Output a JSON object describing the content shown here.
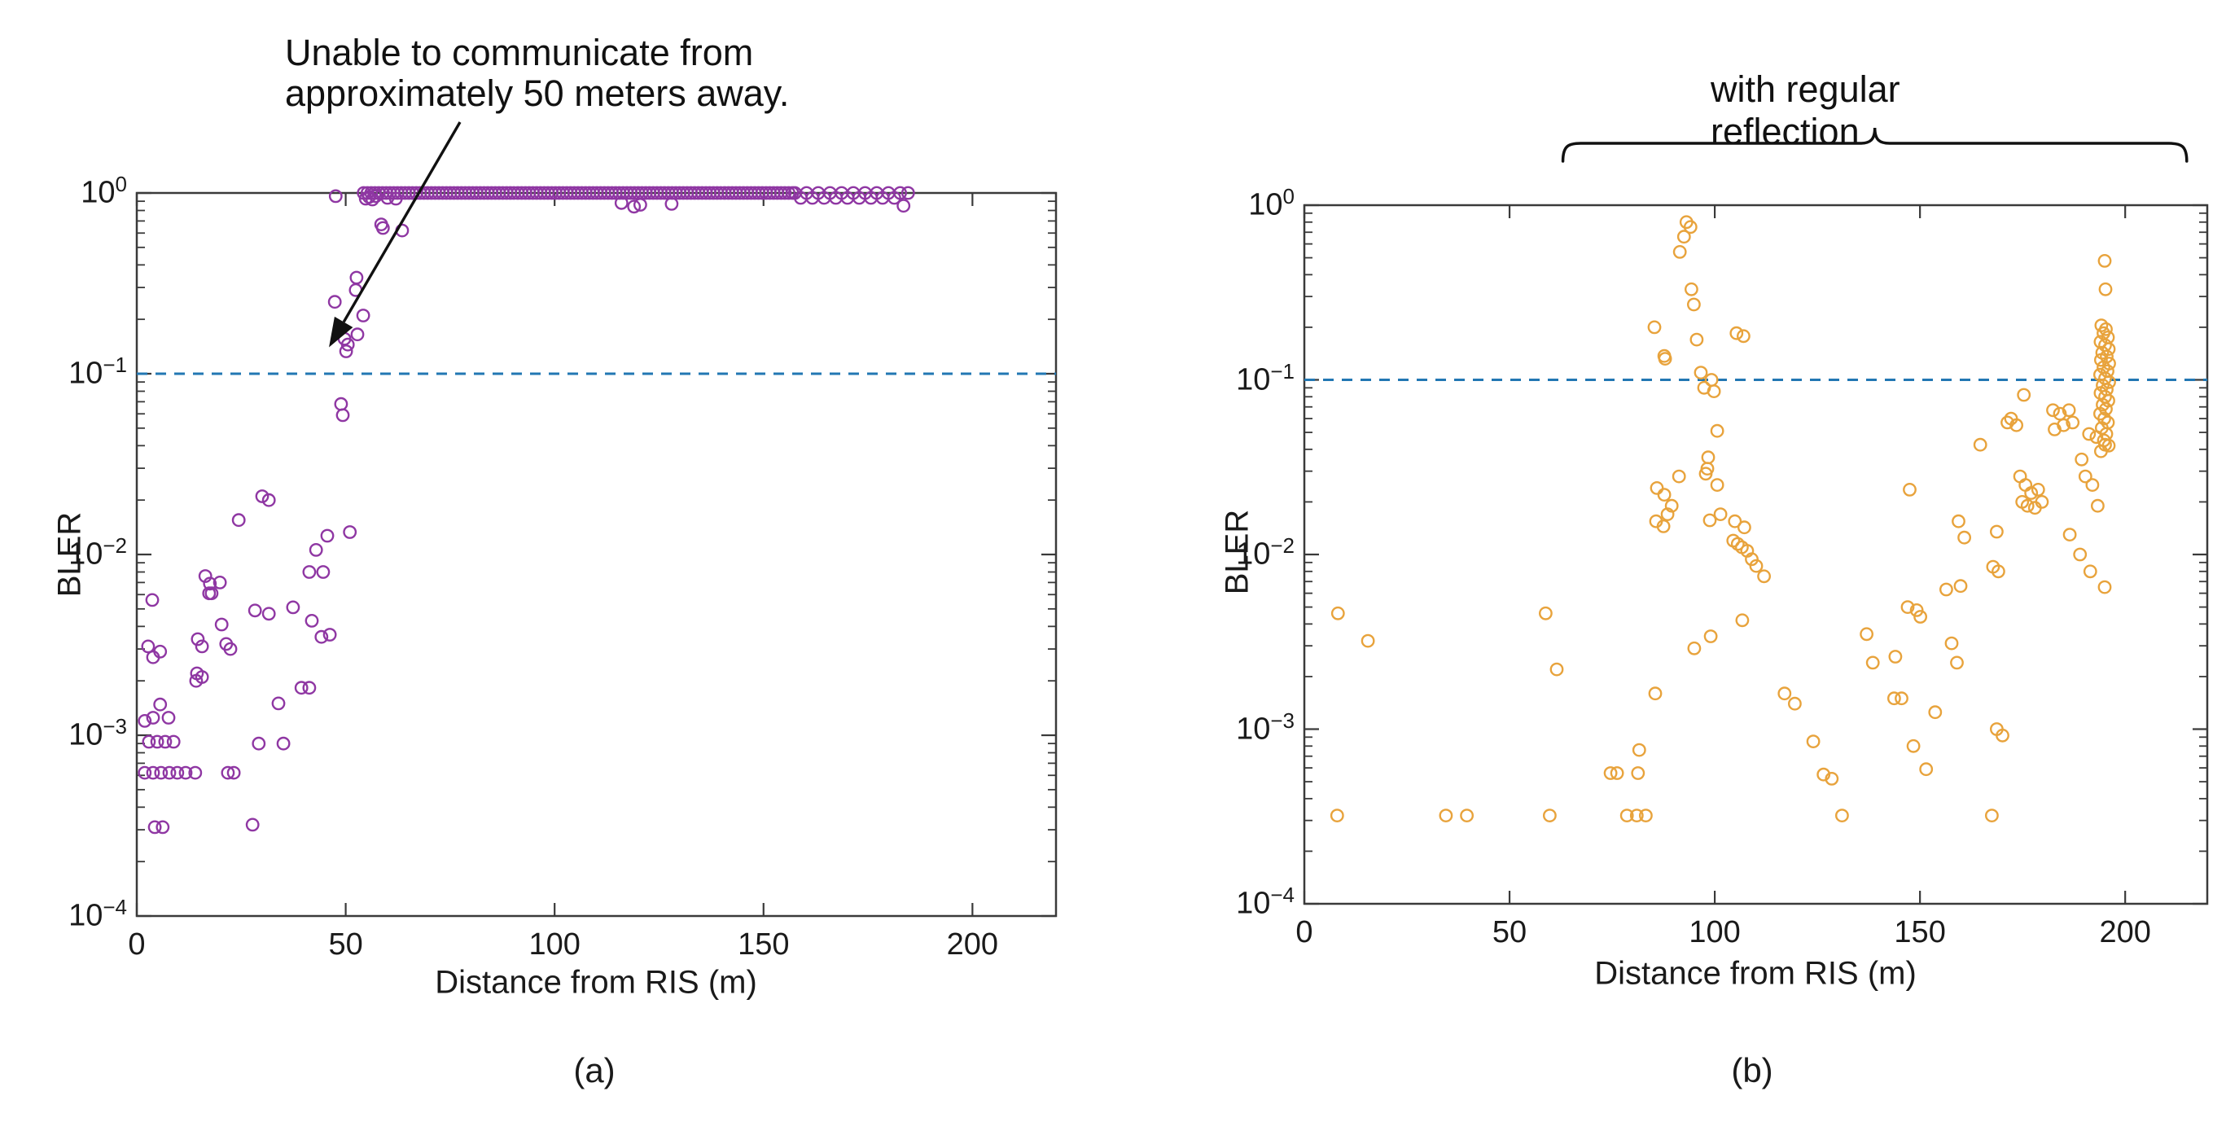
{
  "figure": {
    "background": "#ffffff",
    "accent_colors": {
      "panel_a_marker": "#8F37A3",
      "panel_b_marker": "#E8A33C",
      "threshold_line": "#2277B3",
      "axis": "#3a3a3a",
      "text": "#1a1a1a"
    },
    "panels": [
      {
        "id": "a",
        "caption": "(a)",
        "xlabel": "Distance from RIS (m)",
        "ylabel": "BLER",
        "annotation": {
          "line1": "Unable to communicate from",
          "line2": "approximately 50 meters away."
        }
      },
      {
        "id": "b",
        "caption": "(b)",
        "xlabel": "Distance from RIS (m)",
        "ylabel": "BLER",
        "brace_label": "with regular reflection"
      }
    ]
  },
  "chart_data": [
    {
      "type": "scatter",
      "panel": "a",
      "title": "",
      "xlabel": "Distance from RIS (m)",
      "ylabel": "BLER",
      "xlim": [
        0,
        220
      ],
      "xticks": [
        0,
        50,
        100,
        150,
        200
      ],
      "yscale": "log",
      "ylim": [
        0.0001,
        1
      ],
      "ytick_exponents": [
        0,
        -1,
        -2,
        -3,
        -4
      ],
      "grid": false,
      "legend": "none",
      "marker": {
        "shape": "open-circle",
        "color": "#8F37A3",
        "radius_px": 7.2
      },
      "threshold_line": {
        "value": 0.1,
        "style": "dashed",
        "color": "#2277B3"
      },
      "annotation": {
        "text_line1": "Unable to communicate from",
        "text_line2": "approximately 50 meters away.",
        "arrow_target": [
          46,
          0.14
        ]
      },
      "saturated_band": {
        "value": 1.0,
        "x_start": 54.3,
        "x_end": 157.0,
        "step": 0.9
      },
      "points": [
        [
          47.6,
          0.96
        ],
        [
          58.5,
          0.67
        ],
        [
          58.9,
          0.64
        ],
        [
          63.5,
          0.62
        ],
        [
          52.6,
          0.34
        ],
        [
          52.4,
          0.29
        ],
        [
          47.4,
          0.25
        ],
        [
          54.2,
          0.21
        ],
        [
          52.8,
          0.165
        ],
        [
          49.7,
          0.156
        ],
        [
          50.5,
          0.145
        ],
        [
          50.1,
          0.133
        ],
        [
          48.9,
          0.068
        ],
        [
          49.3,
          0.059
        ],
        [
          54.8,
          0.93
        ],
        [
          55.6,
          0.95
        ],
        [
          56.4,
          0.92
        ],
        [
          57.2,
          0.96
        ],
        [
          60,
          0.94
        ],
        [
          62,
          0.93
        ],
        [
          116,
          0.88
        ],
        [
          119,
          0.84
        ],
        [
          120.5,
          0.86
        ],
        [
          128,
          0.87
        ],
        [
          183.5,
          0.85
        ],
        [
          157.5,
          1
        ],
        [
          160.3,
          1
        ],
        [
          163.1,
          1
        ],
        [
          165.9,
          1
        ],
        [
          168.7,
          1
        ],
        [
          171.5,
          1
        ],
        [
          174.3,
          1
        ],
        [
          177.1,
          1
        ],
        [
          179.9,
          1
        ],
        [
          182.7,
          1
        ],
        [
          184.6,
          1
        ],
        [
          158.9,
          0.94
        ],
        [
          161.7,
          0.94
        ],
        [
          164.5,
          0.94
        ],
        [
          167.3,
          0.94
        ],
        [
          170.1,
          0.94
        ],
        [
          172.9,
          0.94
        ],
        [
          175.7,
          0.94
        ],
        [
          178.5,
          0.94
        ],
        [
          181.3,
          0.94
        ],
        [
          30,
          0.021
        ],
        [
          31.6,
          0.02
        ],
        [
          24.4,
          0.0155
        ],
        [
          51,
          0.0133
        ],
        [
          45.6,
          0.0127
        ],
        [
          42.9,
          0.0106
        ],
        [
          41.3,
          0.008
        ],
        [
          44.6,
          0.008
        ],
        [
          16.4,
          0.0076
        ],
        [
          19.9,
          0.007
        ],
        [
          17.5,
          0.0069
        ],
        [
          17.3,
          0.0061
        ],
        [
          17.9,
          0.0061
        ],
        [
          3.7,
          0.0056
        ],
        [
          37.4,
          0.0051
        ],
        [
          28.3,
          0.0049
        ],
        [
          31.6,
          0.0047
        ],
        [
          41.9,
          0.0043
        ],
        [
          20.3,
          0.0041
        ],
        [
          46.2,
          0.0036
        ],
        [
          44.2,
          0.0035
        ],
        [
          14.6,
          0.0034
        ],
        [
          21.4,
          0.0032
        ],
        [
          2.7,
          0.0031
        ],
        [
          15.6,
          0.0031
        ],
        [
          22.4,
          0.003
        ],
        [
          5.6,
          0.0029
        ],
        [
          3.9,
          0.0027
        ],
        [
          14.4,
          0.0022
        ],
        [
          15.6,
          0.0021
        ],
        [
          14.2,
          0.002
        ],
        [
          39.4,
          0.00183
        ],
        [
          41.3,
          0.00183
        ],
        [
          33.9,
          0.0015
        ],
        [
          5.6,
          0.00148
        ],
        [
          3.9,
          0.00125
        ],
        [
          7.6,
          0.00125
        ],
        [
          1.9,
          0.0012
        ],
        [
          2.9,
          0.00092
        ],
        [
          4.9,
          0.00092
        ],
        [
          6.8,
          0.00092
        ],
        [
          8.8,
          0.00092
        ],
        [
          29.2,
          0.0009
        ],
        [
          35.1,
          0.0009
        ],
        [
          1.9,
          0.00062
        ],
        [
          3.9,
          0.00062
        ],
        [
          5.8,
          0.00062
        ],
        [
          7.8,
          0.00062
        ],
        [
          9.7,
          0.00062
        ],
        [
          11.7,
          0.00062
        ],
        [
          14,
          0.00062
        ],
        [
          21.8,
          0.00062
        ],
        [
          23.2,
          0.00062
        ],
        [
          4.3,
          0.00031
        ],
        [
          6.2,
          0.00031
        ],
        [
          27.7,
          0.00032
        ]
      ]
    },
    {
      "type": "scatter",
      "panel": "b",
      "title": "",
      "xlabel": "Distance from RIS (m)",
      "ylabel": "BLER",
      "xlim": [
        0,
        220
      ],
      "xticks": [
        0,
        50,
        100,
        150,
        200
      ],
      "yscale": "log",
      "ylim": [
        0.0001,
        1
      ],
      "ytick_exponents": [
        0,
        -1,
        -2,
        -3,
        -4
      ],
      "grid": false,
      "legend": "none",
      "marker": {
        "shape": "open-circle",
        "color": "#E8A33C",
        "radius_px": 7.2
      },
      "threshold_line": {
        "value": 0.1,
        "style": "dashed",
        "color": "#2277B3"
      },
      "brace": {
        "label": "with regular reflection",
        "x_start": 63,
        "x_end": 215
      },
      "points": [
        [
          8.2,
          0.0046
        ],
        [
          15.5,
          0.0032
        ],
        [
          58.8,
          0.0046
        ],
        [
          61.5,
          0.0022
        ],
        [
          85.5,
          0.0016
        ],
        [
          81.6,
          0.00076
        ],
        [
          74.6,
          0.00056
        ],
        [
          76.2,
          0.00056
        ],
        [
          81.3,
          0.00056
        ],
        [
          8,
          0.00032
        ],
        [
          34.5,
          0.00032
        ],
        [
          39.6,
          0.00032
        ],
        [
          59.8,
          0.00032
        ],
        [
          78.6,
          0.00032
        ],
        [
          81,
          0.00032
        ],
        [
          83.2,
          0.00032
        ],
        [
          131,
          0.00032
        ],
        [
          167.5,
          0.00032
        ],
        [
          93.1,
          0.8
        ],
        [
          94.1,
          0.75
        ],
        [
          92.5,
          0.66
        ],
        [
          91.5,
          0.54
        ],
        [
          94.3,
          0.33
        ],
        [
          94.9,
          0.27
        ],
        [
          85.3,
          0.2
        ],
        [
          95.6,
          0.17
        ],
        [
          87.7,
          0.137
        ],
        [
          87.9,
          0.132
        ],
        [
          105.3,
          0.185
        ],
        [
          107,
          0.178
        ],
        [
          96.6,
          0.11
        ],
        [
          99.2,
          0.1
        ],
        [
          97.4,
          0.09
        ],
        [
          99.8,
          0.086
        ],
        [
          100.6,
          0.051
        ],
        [
          98.4,
          0.036
        ],
        [
          98.2,
          0.031
        ],
        [
          97.8,
          0.029
        ],
        [
          91.3,
          0.028
        ],
        [
          85.9,
          0.024
        ],
        [
          87.7,
          0.022
        ],
        [
          89.5,
          0.019
        ],
        [
          88.5,
          0.017
        ],
        [
          85.7,
          0.0155
        ],
        [
          87.5,
          0.0145
        ],
        [
          100.6,
          0.025
        ],
        [
          101.4,
          0.017
        ],
        [
          104.9,
          0.0155
        ],
        [
          107.2,
          0.0143
        ],
        [
          104.5,
          0.012
        ],
        [
          105.6,
          0.0115
        ],
        [
          106.6,
          0.011
        ],
        [
          107.9,
          0.0105
        ],
        [
          109,
          0.0094
        ],
        [
          110.1,
          0.0086
        ],
        [
          112,
          0.0075
        ],
        [
          98.8,
          0.0157
        ],
        [
          95,
          0.0029
        ],
        [
          99,
          0.0034
        ],
        [
          106.7,
          0.0042
        ],
        [
          117,
          0.0016
        ],
        [
          119.5,
          0.0014
        ],
        [
          124,
          0.00085
        ],
        [
          126.5,
          0.00055
        ],
        [
          128.5,
          0.00052
        ],
        [
          137,
          0.0035
        ],
        [
          138.5,
          0.0024
        ],
        [
          144,
          0.0026
        ],
        [
          143.7,
          0.0015
        ],
        [
          145.5,
          0.0015
        ],
        [
          147,
          0.005
        ],
        [
          149.2,
          0.0048
        ],
        [
          150.1,
          0.0044
        ],
        [
          153.7,
          0.00125
        ],
        [
          148.4,
          0.0008
        ],
        [
          151.5,
          0.00059
        ],
        [
          156.4,
          0.0063
        ],
        [
          159.9,
          0.0066
        ],
        [
          157.7,
          0.0031
        ],
        [
          159,
          0.0024
        ],
        [
          147.5,
          0.0235
        ],
        [
          159.4,
          0.0155
        ],
        [
          160.8,
          0.0125
        ],
        [
          164.7,
          0.0425
        ],
        [
          168.7,
          0.0135
        ],
        [
          167.8,
          0.0085
        ],
        [
          169.1,
          0.008
        ],
        [
          168.7,
          0.001
        ],
        [
          170.1,
          0.00092
        ],
        [
          171.3,
          0.057
        ],
        [
          172.2,
          0.06
        ],
        [
          173.5,
          0.055
        ],
        [
          175.3,
          0.082
        ],
        [
          174.4,
          0.028
        ],
        [
          175.7,
          0.025
        ],
        [
          177.1,
          0.0225
        ],
        [
          178.8,
          0.0235
        ],
        [
          174.9,
          0.02
        ],
        [
          176.2,
          0.019
        ],
        [
          178,
          0.0185
        ],
        [
          179.7,
          0.02
        ],
        [
          182.4,
          0.067
        ],
        [
          184.1,
          0.064
        ],
        [
          186.3,
          0.067
        ],
        [
          187.2,
          0.057
        ],
        [
          185,
          0.055
        ],
        [
          182.8,
          0.052
        ],
        [
          189.4,
          0.035
        ],
        [
          190.3,
          0.028
        ],
        [
          192,
          0.025
        ],
        [
          193.3,
          0.019
        ],
        [
          191.2,
          0.049
        ],
        [
          193,
          0.047
        ],
        [
          195.1,
          0.0425
        ],
        [
          186.5,
          0.013
        ],
        [
          189,
          0.01
        ],
        [
          191.5,
          0.008
        ],
        [
          195,
          0.0065
        ],
        [
          195,
          0.48
        ],
        [
          195.2,
          0.33
        ],
        [
          194.2,
          0.205
        ],
        [
          195.3,
          0.195
        ],
        [
          194.7,
          0.185
        ],
        [
          195.8,
          0.175
        ],
        [
          194,
          0.165
        ],
        [
          195.1,
          0.158
        ],
        [
          196,
          0.15
        ],
        [
          194.4,
          0.143
        ],
        [
          195.5,
          0.136
        ],
        [
          194.1,
          0.13
        ],
        [
          196.1,
          0.124
        ],
        [
          194.7,
          0.118
        ],
        [
          195.7,
          0.112
        ],
        [
          193.9,
          0.107
        ],
        [
          195.1,
          0.102
        ],
        [
          196.1,
          0.097
        ],
        [
          194.5,
          0.093
        ],
        [
          195.5,
          0.088
        ],
        [
          194,
          0.084
        ],
        [
          195.1,
          0.08
        ],
        [
          195.9,
          0.076
        ],
        [
          194.5,
          0.072
        ],
        [
          195.3,
          0.068
        ],
        [
          193.9,
          0.064
        ],
        [
          194.9,
          0.06
        ],
        [
          195.8,
          0.057
        ],
        [
          194.3,
          0.053
        ],
        [
          195.4,
          0.049
        ],
        [
          194.8,
          0.045
        ],
        [
          196,
          0.042
        ],
        [
          194.1,
          0.039
        ]
      ]
    }
  ]
}
